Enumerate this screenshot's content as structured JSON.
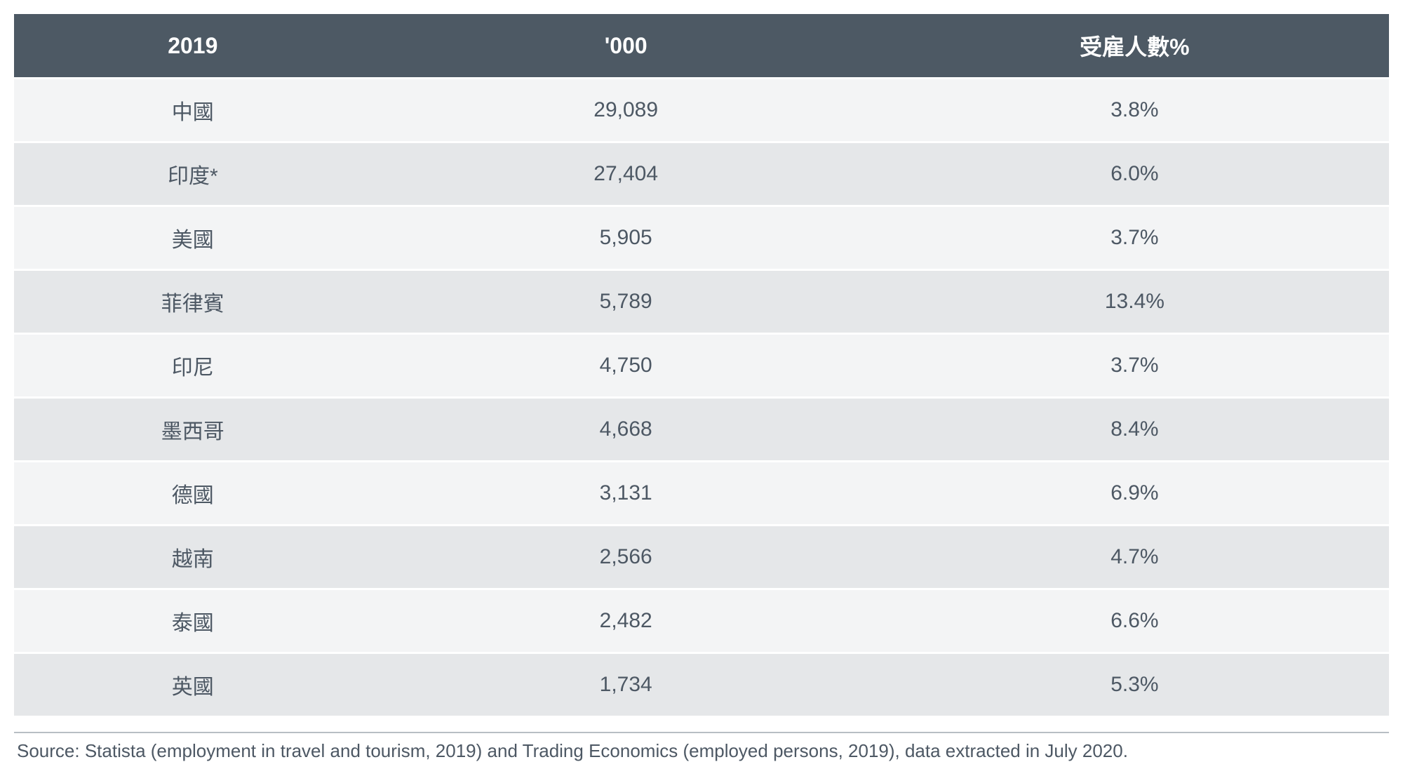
{
  "table": {
    "type": "table",
    "header_bg": "#4d5964",
    "header_text_color": "#ffffff",
    "row_odd_bg": "#f3f4f5",
    "row_even_bg": "#e5e7e9",
    "cell_text_color": "#4d5864",
    "border_color": "#ffffff",
    "header_fontsize": 32,
    "cell_fontsize": 30,
    "col_widths_pct": [
      26,
      37,
      37
    ],
    "columns": [
      "2019",
      "'000",
      "受雇人數%"
    ],
    "rows": [
      [
        "中國",
        "29,089",
        "3.8%"
      ],
      [
        "印度*",
        "27,404",
        "6.0%"
      ],
      [
        "美國",
        "5,905",
        "3.7%"
      ],
      [
        "菲律賓",
        "5,789",
        "13.4%"
      ],
      [
        "印尼",
        "4,750",
        "3.7%"
      ],
      [
        "墨西哥",
        "4,668",
        "8.4%"
      ],
      [
        "德國",
        "3,131",
        "6.9%"
      ],
      [
        "越南",
        "2,566",
        "4.7%"
      ],
      [
        "泰國",
        "2,482",
        "6.6%"
      ],
      [
        "英國",
        "1,734",
        "5.3%"
      ]
    ]
  },
  "source": {
    "text": "Source: Statista (employment in travel and tourism, 2019) and Trading Economics (employed persons, 2019), data extracted in July 2020.",
    "text_color": "#4d5864",
    "border_color": "#b8bec4",
    "fontsize": 26
  }
}
